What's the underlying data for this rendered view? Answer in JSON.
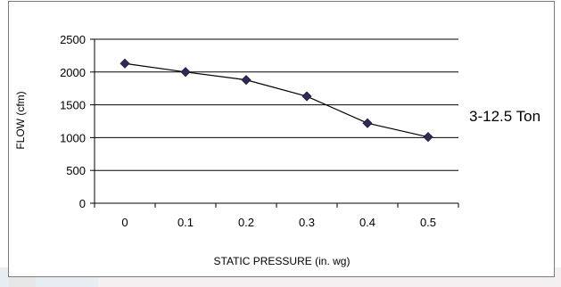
{
  "series_label": "3-12.5 Ton",
  "colors": {
    "line": "#000000",
    "marker": "#2e2b5a",
    "grid": "#000000"
  },
  "chart_data": {
    "type": "line",
    "title": "",
    "xlabel": "STATIC PRESSURE (in. wg)",
    "ylabel": "FLOW (cfm)",
    "ylim": [
      0,
      2500
    ],
    "yticks": [
      0,
      500,
      1000,
      1500,
      2000,
      2500
    ],
    "categories": [
      "0",
      "0.1",
      "0.2",
      "0.3",
      "0.4",
      "0.5"
    ],
    "grid": true,
    "series": [
      {
        "name": "3-12.5 Ton",
        "values": [
          2130,
          2000,
          1880,
          1630,
          1220,
          1010
        ]
      }
    ]
  }
}
